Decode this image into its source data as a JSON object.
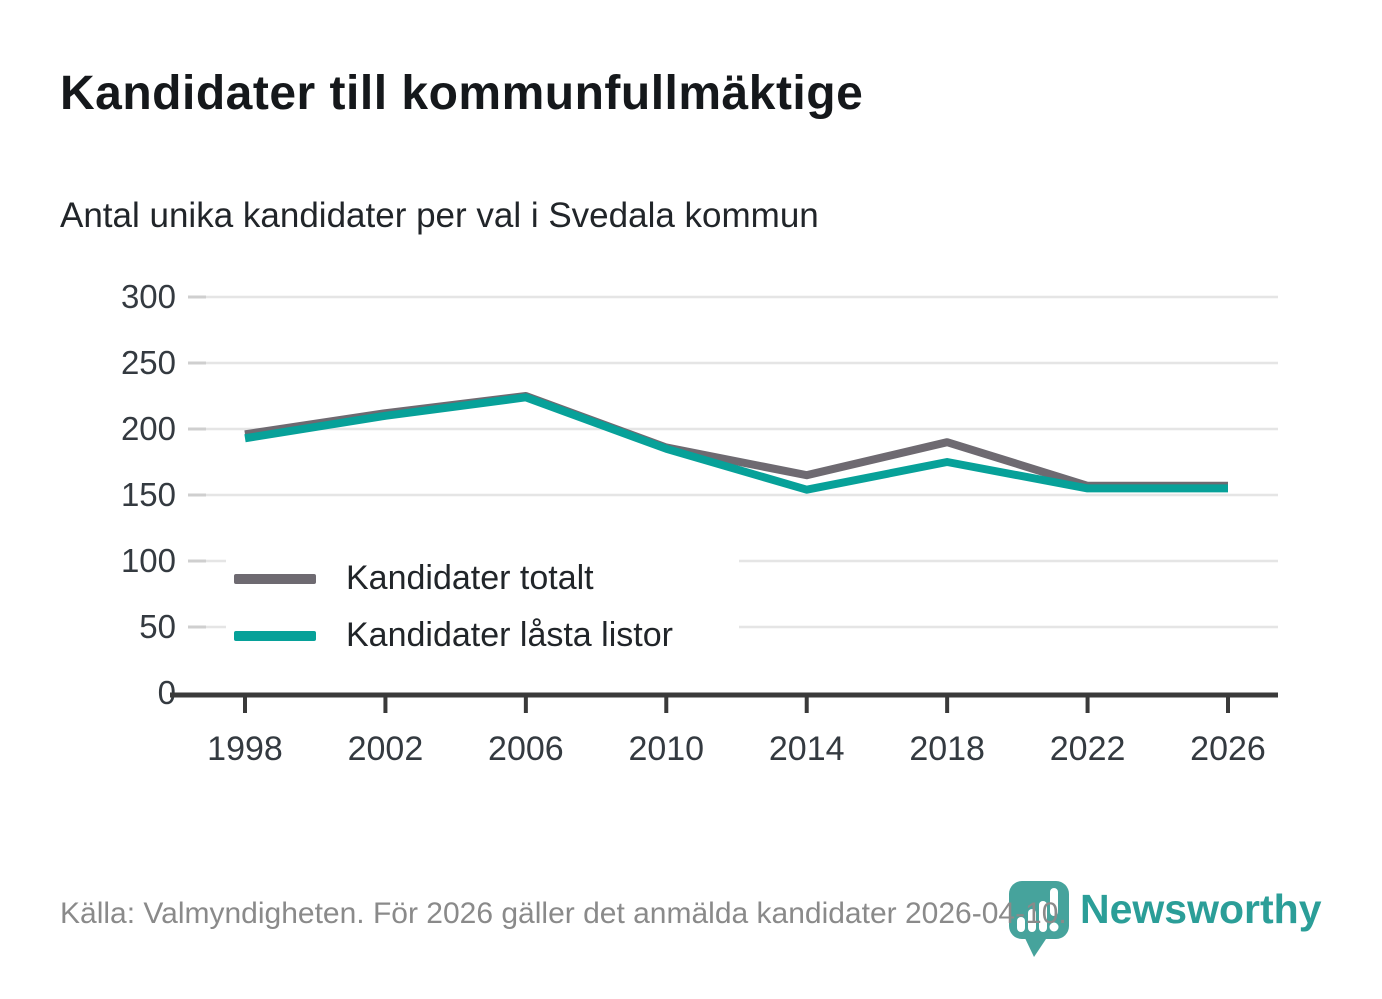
{
  "header": {
    "title": "Kandidater till kommunfullmäktige",
    "subtitle": "Antal unika kandidater per val i Svedala kommun"
  },
  "chart_data": {
    "type": "line",
    "title": "Kandidater till kommunfullmäktige",
    "subtitle": "Antal unika kandidater per val i Svedala kommun",
    "x": [
      1998,
      2002,
      2006,
      2010,
      2014,
      2018,
      2022,
      2026
    ],
    "series": [
      {
        "name": "Kandidater totalt",
        "color": "#6e6a71",
        "values": [
          196,
          212,
          225,
          186,
          165,
          190,
          157,
          157
        ]
      },
      {
        "name": "Kandidater låsta listor",
        "color": "#07a199",
        "values": [
          193,
          210,
          224,
          185,
          154,
          175,
          155,
          155
        ]
      }
    ],
    "ylim": [
      0,
      300
    ],
    "yticks": [
      0,
      50,
      100,
      150,
      200,
      250,
      300
    ],
    "grid": "horizontal",
    "gridline_color": "#e5e5e5",
    "axis_color": "#3a3a3a",
    "tick_label_color": "#343a40",
    "legend_position": "inside-bottom-left"
  },
  "footer": {
    "source": "Källa: Valmyndigheten. För 2026 gäller det anmälda kandidater 2026-04-10.",
    "logo_text": "Newsworthy",
    "logo_icon": "newsworthy-speech-bubble-barchart-icon",
    "logo_color": "#2b9e98",
    "logo_icon_color": "#46a39c"
  }
}
